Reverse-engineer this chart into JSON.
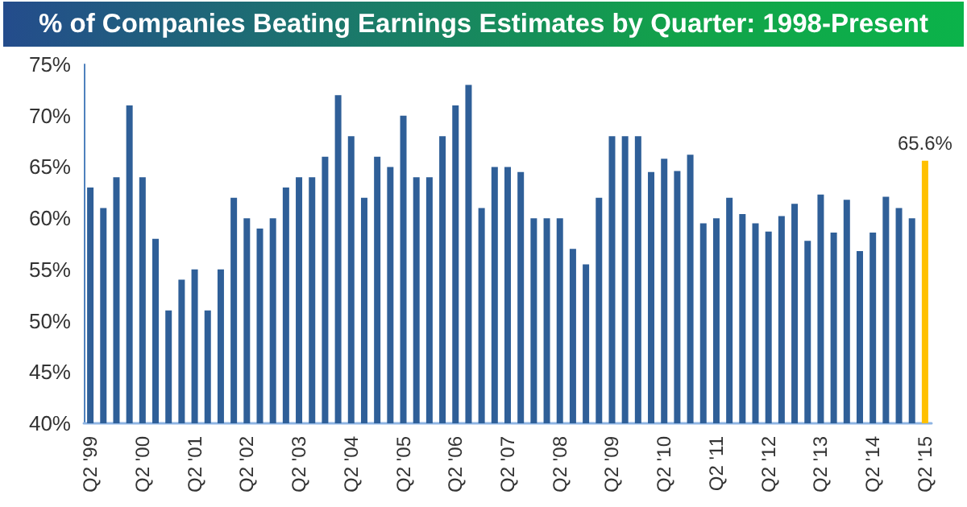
{
  "chart_data": {
    "type": "bar",
    "title": "% of Companies Beating Earnings Estimates by Quarter: 1998-Present",
    "categories": [
      "Q2 '99",
      null,
      null,
      null,
      "Q2 '00",
      null,
      null,
      null,
      "Q2 '01",
      null,
      null,
      null,
      "Q2 '02",
      null,
      null,
      null,
      "Q2 '03",
      null,
      null,
      null,
      "Q2 '04",
      null,
      null,
      null,
      "Q2 '05",
      null,
      null,
      null,
      "Q2 '06",
      null,
      null,
      null,
      "Q2 '07",
      null,
      null,
      null,
      "Q2 '08",
      null,
      null,
      null,
      "Q2 '09",
      null,
      null,
      null,
      "Q2 '10",
      null,
      null,
      null,
      "Q2 '11",
      null,
      null,
      null,
      "Q2 '12",
      null,
      null,
      null,
      "Q2 '13",
      null,
      null,
      null,
      "Q2 '14",
      null,
      null,
      null,
      "Q2 '15"
    ],
    "values": [
      63,
      61,
      64,
      71,
      64,
      58,
      51,
      54,
      55,
      51,
      55,
      62,
      60,
      59,
      60,
      63,
      64,
      64,
      66,
      72,
      68,
      62,
      66,
      65,
      70,
      64,
      64,
      68,
      71,
      73,
      61,
      65,
      65,
      64.5,
      60,
      60,
      60,
      57,
      55.5,
      62,
      68,
      68,
      68,
      64.5,
      65.8,
      64.6,
      66.2,
      59.5,
      60,
      62,
      60.4,
      59.5,
      58.7,
      60.2,
      61.4,
      57.8,
      62.3,
      58.6,
      61.8,
      56.8,
      58.6,
      62.1,
      61,
      60,
      65.6
    ],
    "colors": [
      "#2f5f98",
      "#2f5f98",
      "#2f5f98",
      "#2f5f98",
      "#2f5f98",
      "#2f5f98",
      "#2f5f98",
      "#2f5f98",
      "#2f5f98",
      "#2f5f98",
      "#2f5f98",
      "#2f5f98",
      "#2f5f98",
      "#2f5f98",
      "#2f5f98",
      "#2f5f98",
      "#2f5f98",
      "#2f5f98",
      "#2f5f98",
      "#2f5f98",
      "#2f5f98",
      "#2f5f98",
      "#2f5f98",
      "#2f5f98",
      "#2f5f98",
      "#2f5f98",
      "#2f5f98",
      "#2f5f98",
      "#2f5f98",
      "#2f5f98",
      "#2f5f98",
      "#2f5f98",
      "#2f5f98",
      "#2f5f98",
      "#2f5f98",
      "#2f5f98",
      "#2f5f98",
      "#2f5f98",
      "#2f5f98",
      "#2f5f98",
      "#2f5f98",
      "#2f5f98",
      "#2f5f98",
      "#2f5f98",
      "#2f5f98",
      "#2f5f98",
      "#2f5f98",
      "#2f5f98",
      "#2f5f98",
      "#2f5f98",
      "#2f5f98",
      "#2f5f98",
      "#2f5f98",
      "#2f5f98",
      "#2f5f98",
      "#2f5f98",
      "#2f5f98",
      "#2f5f98",
      "#2f5f98",
      "#2f5f98",
      "#2f5f98",
      "#2f5f98",
      "#2f5f98",
      "#2f5f98",
      "#ffc000"
    ],
    "value_labels": [
      null,
      null,
      null,
      null,
      null,
      null,
      null,
      null,
      null,
      null,
      null,
      null,
      null,
      null,
      null,
      null,
      null,
      null,
      null,
      null,
      null,
      null,
      null,
      null,
      null,
      null,
      null,
      null,
      null,
      null,
      null,
      null,
      null,
      null,
      null,
      null,
      null,
      null,
      null,
      null,
      null,
      null,
      null,
      null,
      null,
      null,
      null,
      null,
      null,
      null,
      null,
      null,
      null,
      null,
      null,
      null,
      null,
      null,
      null,
      null,
      null,
      null,
      null,
      null,
      "65.6%"
    ],
    "ylim": [
      40,
      75
    ],
    "yticks": [
      {
        "value": 40,
        "label": "40%"
      },
      {
        "value": 45,
        "label": "45%"
      },
      {
        "value": 50,
        "label": "50%"
      },
      {
        "value": 55,
        "label": "55%"
      },
      {
        "value": 60,
        "label": "60%"
      },
      {
        "value": 65,
        "label": "65%"
      },
      {
        "value": 70,
        "label": "70%"
      },
      {
        "value": 75,
        "label": "75%"
      }
    ],
    "grid": false
  }
}
